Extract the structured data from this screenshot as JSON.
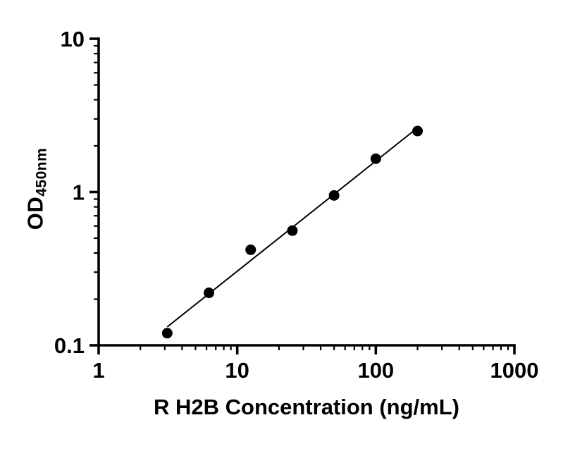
{
  "chart_data": {
    "type": "scatter",
    "title": "",
    "xlabel": "R H2B Concentration (ng/mL)",
    "ylabel_main": "OD",
    "ylabel_sub": "450nm",
    "xscale": "log",
    "yscale": "log",
    "xlim": [
      1,
      1000
    ],
    "ylim": [
      0.1,
      10
    ],
    "x_ticks": [
      1,
      10,
      100,
      1000
    ],
    "x_tick_labels": [
      "1",
      "10",
      "100",
      "1000"
    ],
    "y_ticks": [
      0.1,
      1,
      10
    ],
    "y_tick_labels": [
      "0.1",
      "1",
      "10"
    ],
    "points": {
      "x": [
        3.125,
        6.25,
        12.5,
        25,
        50,
        100,
        200
      ],
      "y": [
        0.12,
        0.22,
        0.42,
        0.56,
        0.95,
        1.65,
        2.5
      ]
    },
    "fit_line": true,
    "fit_type": "log-log linear",
    "marker_color": "#000000",
    "line_color": "#000000",
    "background": "#ffffff",
    "grid": false,
    "legend": false
  }
}
